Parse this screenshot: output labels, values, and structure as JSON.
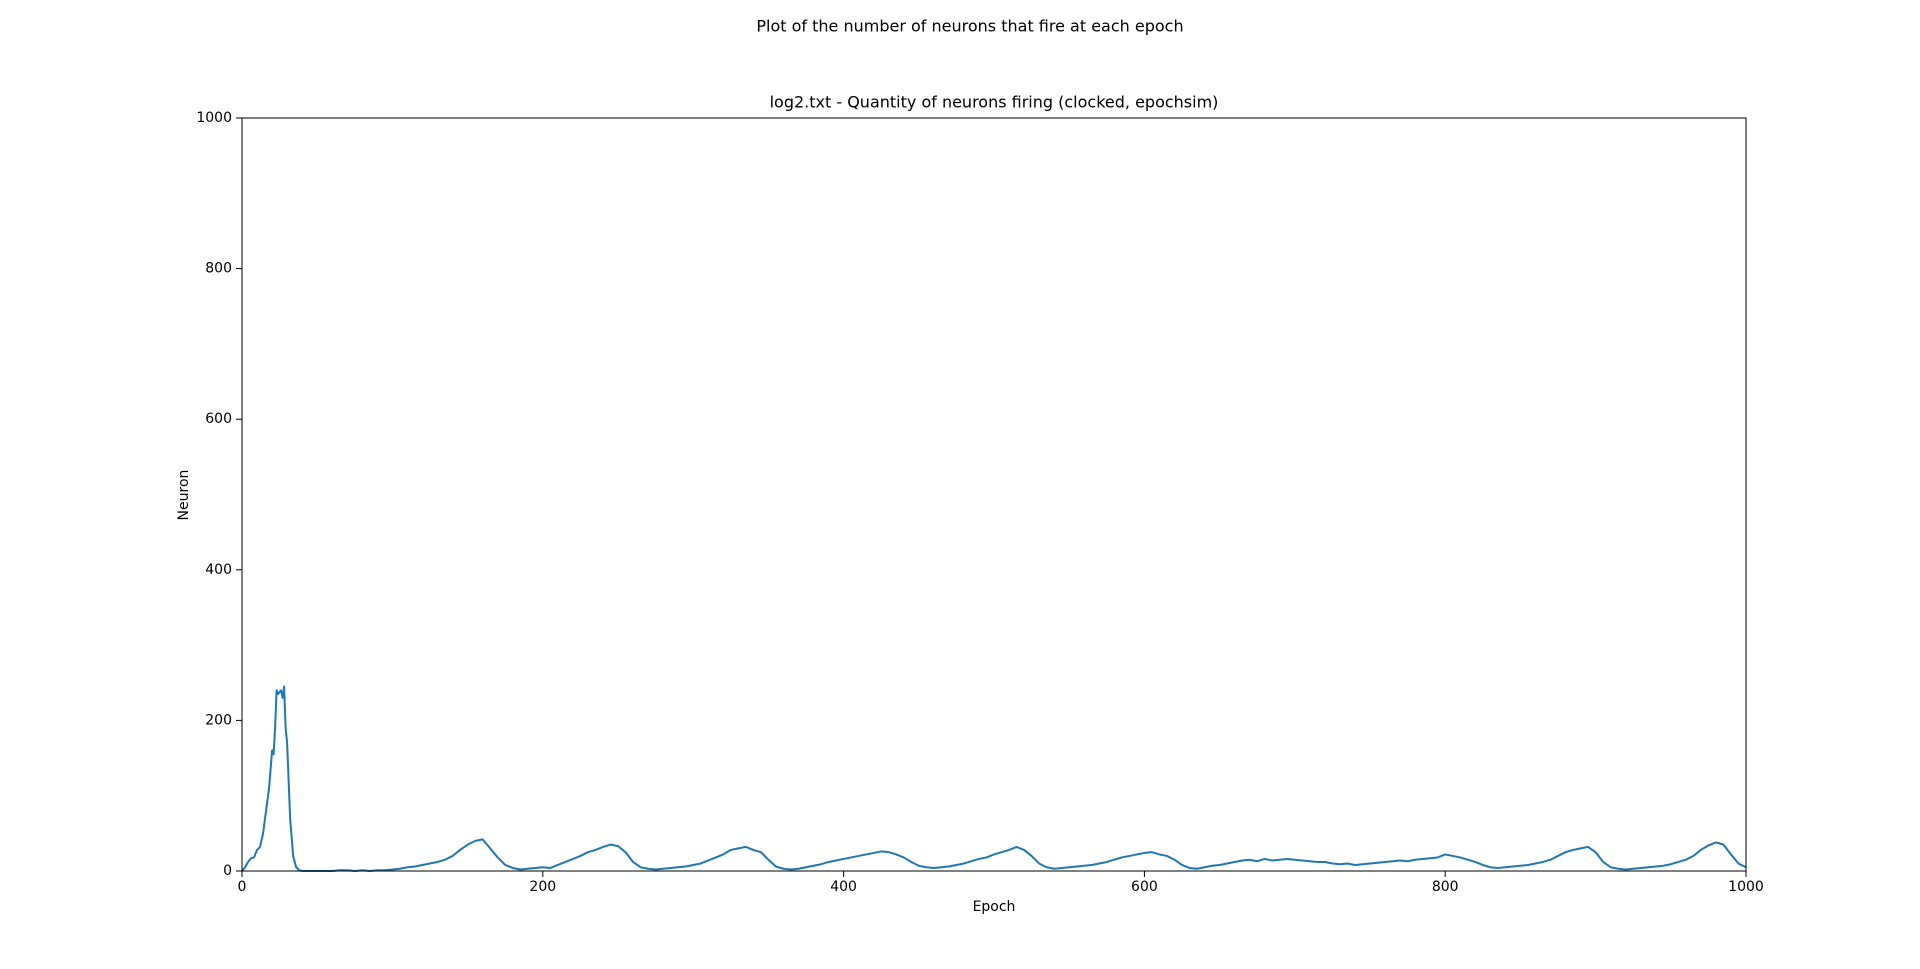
{
  "chart_data": {
    "type": "line",
    "suptitle": "Plot of the number of neurons that fire at each epoch",
    "title": "log2.txt - Quantity of neurons firing (clocked, epochsim)",
    "x_label": "Epoch",
    "y_label": "Neuron",
    "xlim": [
      0,
      1000
    ],
    "xticks": [
      0,
      200,
      400,
      600,
      800,
      1000
    ],
    "ylim": [
      0,
      1000
    ],
    "yticks": [
      0,
      200,
      400,
      600,
      800,
      1000
    ],
    "grid": false,
    "series": [
      {
        "color": "#1f77b4",
        "x": [
          0,
          2,
          4,
          6,
          8,
          10,
          12,
          14,
          16,
          18,
          20,
          21,
          22,
          23,
          24,
          26,
          27,
          28,
          29,
          30,
          31,
          32,
          34,
          36,
          38,
          40,
          45,
          50,
          55,
          60,
          65,
          70,
          75,
          80,
          85,
          90,
          95,
          100,
          105,
          110,
          115,
          120,
          125,
          130,
          135,
          140,
          145,
          150,
          155,
          160,
          165,
          170,
          175,
          180,
          185,
          190,
          195,
          200,
          205,
          210,
          215,
          220,
          225,
          230,
          235,
          240,
          245,
          250,
          255,
          260,
          265,
          270,
          275,
          280,
          285,
          290,
          295,
          300,
          305,
          310,
          315,
          320,
          325,
          330,
          335,
          340,
          345,
          350,
          355,
          360,
          365,
          370,
          375,
          380,
          385,
          390,
          395,
          400,
          405,
          410,
          415,
          420,
          425,
          430,
          435,
          440,
          445,
          450,
          455,
          460,
          465,
          470,
          475,
          480,
          485,
          490,
          495,
          500,
          505,
          510,
          515,
          520,
          525,
          530,
          535,
          540,
          545,
          550,
          555,
          560,
          565,
          570,
          575,
          580,
          585,
          590,
          595,
          600,
          605,
          610,
          615,
          620,
          625,
          630,
          635,
          640,
          645,
          650,
          655,
          660,
          665,
          670,
          675,
          680,
          685,
          690,
          695,
          700,
          705,
          710,
          715,
          720,
          725,
          730,
          735,
          740,
          745,
          750,
          755,
          760,
          765,
          770,
          775,
          780,
          785,
          790,
          795,
          800,
          805,
          810,
          815,
          820,
          825,
          830,
          835,
          840,
          845,
          850,
          855,
          860,
          865,
          870,
          875,
          880,
          885,
          890,
          895,
          900,
          905,
          910,
          915,
          920,
          925,
          930,
          935,
          940,
          945,
          950,
          955,
          960,
          965,
          970,
          975,
          980,
          985,
          990,
          995,
          1000
        ],
        "values": [
          0,
          5,
          12,
          17,
          18,
          28,
          32,
          50,
          80,
          110,
          160,
          155,
          190,
          240,
          235,
          240,
          230,
          245,
          190,
          170,
          120,
          70,
          20,
          5,
          1,
          0,
          0,
          0,
          0,
          0,
          1,
          1,
          0,
          1,
          0,
          1,
          1,
          2,
          3,
          5,
          6,
          8,
          10,
          12,
          15,
          20,
          28,
          35,
          40,
          42,
          30,
          18,
          8,
          4,
          2,
          3,
          4,
          5,
          4,
          8,
          12,
          16,
          20,
          25,
          28,
          32,
          35,
          33,
          25,
          12,
          5,
          3,
          2,
          3,
          4,
          5,
          6,
          8,
          10,
          14,
          18,
          22,
          28,
          30,
          32,
          28,
          25,
          15,
          6,
          3,
          2,
          3,
          5,
          7,
          9,
          12,
          14,
          16,
          18,
          20,
          22,
          24,
          26,
          25,
          22,
          18,
          12,
          7,
          5,
          4,
          5,
          6,
          8,
          10,
          13,
          16,
          18,
          22,
          25,
          28,
          32,
          28,
          20,
          10,
          5,
          3,
          4,
          5,
          6,
          7,
          8,
          10,
          12,
          15,
          18,
          20,
          22,
          24,
          25,
          22,
          20,
          15,
          8,
          4,
          3,
          5,
          7,
          8,
          10,
          12,
          14,
          15,
          13,
          16,
          14,
          15,
          16,
          15,
          14,
          13,
          12,
          12,
          10,
          9,
          10,
          8,
          9,
          10,
          11,
          12,
          13,
          14,
          13,
          15,
          16,
          17,
          18,
          22,
          20,
          18,
          15,
          12,
          8,
          5,
          4,
          5,
          6,
          7,
          8,
          10,
          12,
          15,
          20,
          25,
          28,
          30,
          32,
          25,
          12,
          5,
          3,
          2,
          3,
          4,
          5,
          6,
          7,
          9,
          12,
          15,
          20,
          28,
          34,
          38,
          35,
          22,
          10,
          5
        ]
      }
    ]
  }
}
